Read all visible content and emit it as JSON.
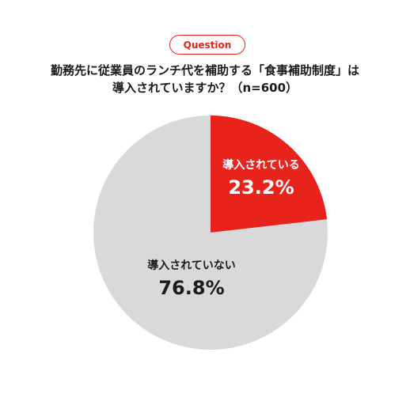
{
  "header": {
    "badge": "Question",
    "title_line1": "勤務先に従業員のランチ代を補助する「食事補助制度」は",
    "title_line2": "導入されていますか？（n=600）"
  },
  "colors": {
    "accent": "#e8231c",
    "slice_other": "#d9d9dc",
    "label_light": "#ffffff",
    "label_dark": "#1a1a1a"
  },
  "chart_data": {
    "type": "pie",
    "title": "勤務先に従業員のランチ代を補助する「食事補助制度」は導入されていますか？（n=600）",
    "slices": [
      {
        "label": "導入されている",
        "value": 23.2,
        "value_label": "23.2%",
        "color": "#e8231c"
      },
      {
        "label": "導入されていない",
        "value": 76.8,
        "value_label": "76.8%",
        "color": "#d9d9dc"
      }
    ],
    "start_angle": "12 o'clock",
    "direction": "clockwise"
  }
}
